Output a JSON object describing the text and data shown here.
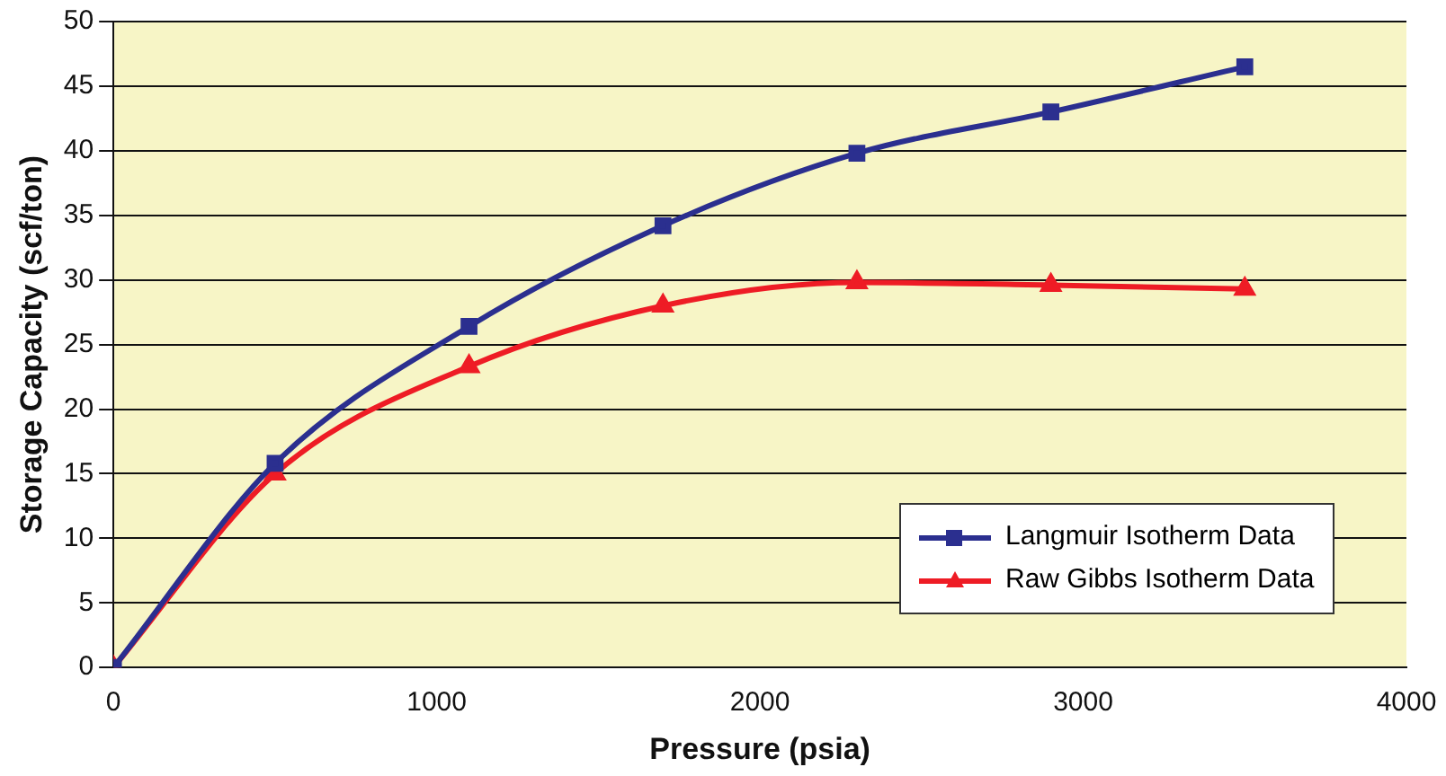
{
  "chart_data": {
    "type": "line",
    "xlabel": "Pressure (psia)",
    "ylabel": "Storage Capacity (scf/ton)",
    "xlim": [
      0,
      4000
    ],
    "xticks": [
      0,
      1000,
      2000,
      3000,
      4000
    ],
    "ylim": [
      0,
      50
    ],
    "yticks": [
      0,
      5,
      10,
      15,
      20,
      25,
      30,
      35,
      40,
      45,
      50
    ],
    "grid": "y",
    "legend": "bottom right",
    "series": [
      {
        "name": "Langmuir Isotherm Data",
        "color": "#2b2f8f",
        "marker": "square",
        "x": [
          0,
          500,
          1100,
          1700,
          2300,
          2900,
          3500
        ],
        "values": [
          0,
          15.8,
          26.4,
          34.2,
          39.8,
          43,
          46.5
        ]
      },
      {
        "name": "Raw Gibbs Isotherm Data",
        "color": "#ee1c25",
        "marker": "triangle",
        "x": [
          0,
          500,
          1100,
          1700,
          2300,
          2900,
          3500
        ],
        "values": [
          0,
          15,
          23.3,
          28,
          29.8,
          29.6,
          29.3
        ]
      }
    ]
  }
}
